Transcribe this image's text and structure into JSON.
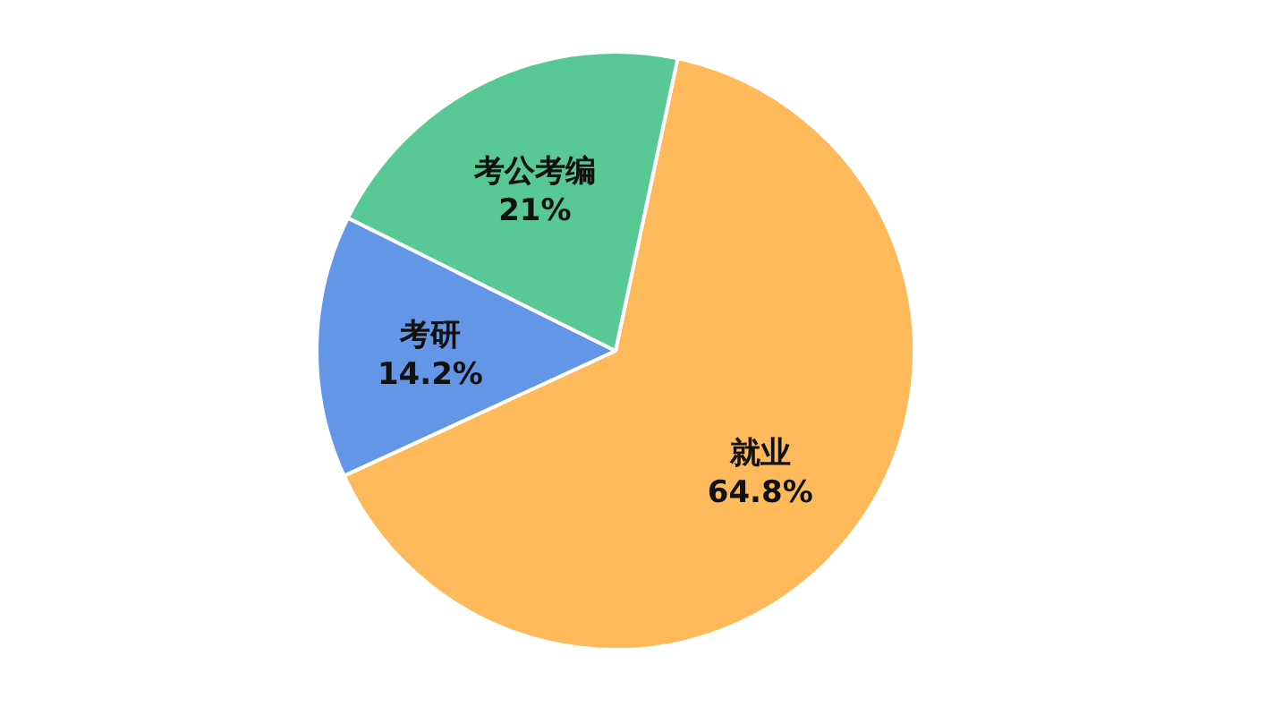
{
  "chart_data": {
    "type": "pie",
    "categories": [
      "就业",
      "考研",
      "考公考编"
    ],
    "values": [
      64.8,
      14.2,
      21
    ],
    "value_labels": [
      "64.8%",
      "14.2%",
      "21%"
    ],
    "colors": [
      "#fdb95a",
      "#6396e6",
      "#58c994"
    ],
    "legend": false
  }
}
